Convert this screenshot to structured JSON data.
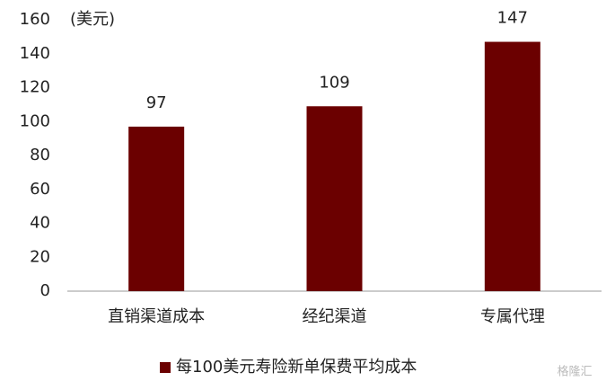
{
  "chart_data": {
    "type": "bar",
    "unit_label": "(美元)",
    "categories": [
      "直销渠道成本",
      "经纪渠道",
      "专属代理"
    ],
    "series": [
      {
        "name": "每100美元寿险新单保费平均成本",
        "color": "#6b0000",
        "values": [
          97,
          109,
          147
        ]
      }
    ],
    "ylim": [
      0,
      160
    ],
    "yticks": [
      0,
      20,
      40,
      60,
      80,
      100,
      120,
      140,
      160
    ],
    "grid": false,
    "legend": "bottom",
    "watermark": "格隆汇"
  }
}
